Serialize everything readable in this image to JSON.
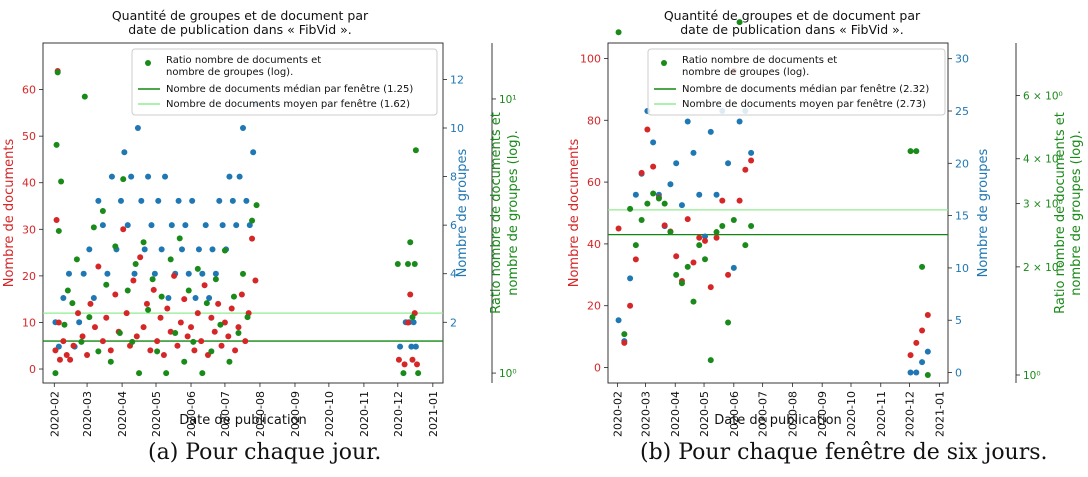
{
  "x_ticks": [
    "2020-02",
    "2020-03",
    "2020-04",
    "2020-05",
    "2020-06",
    "2020-07",
    "2020-08",
    "2020-09",
    "2020-10",
    "2020-11",
    "2020-12",
    "2021-01"
  ],
  "colors": {
    "documents": "#d62728",
    "groups": "#1f77b4",
    "ratio": "#1a8a1a",
    "median": "#118811",
    "mean": "#90ee90"
  },
  "chart_data": [
    {
      "type": "scatter",
      "title": "Quantité de groupes et de document par\ndate de publication dans « FibVid ».",
      "xlabel": "Date de publication",
      "ylabel_left": "Nombre de documents",
      "ylabel_right1": "Nombre de groupes",
      "ylabel_right2": "Ratio nombre de documents et\nnombre de groupes (log).",
      "y_left": {
        "lim": [
          -3,
          70
        ],
        "ticks": [
          0,
          10,
          20,
          30,
          40,
          50,
          60
        ]
      },
      "y_right1": {
        "lim": [
          -0.5,
          13.5
        ],
        "ticks": [
          2,
          4,
          6,
          8,
          10,
          12
        ]
      },
      "y_right2": {
        "lim": [
          0.92,
          16
        ],
        "ticks": [
          {
            "value": 1,
            "label": "10⁰"
          },
          {
            "value": 10,
            "label": "10¹"
          }
        ]
      },
      "legend": {
        "placement": "top-right",
        "entries": [
          "Ratio nombre de documents et\nnombre de groupes (log).",
          "Nombre de documents médian par fenêtre (1.25)",
          "Nombre de documents moyen par fenêtre (1.62)"
        ]
      },
      "hlines": [
        {
          "name": "Nombre de documents médian par fenêtre (1.25)",
          "y": 6
        },
        {
          "name": "Nombre de documents moyen par fenêtre (1.62)",
          "y": 12
        }
      ],
      "documents": [
        [
          "2020-02-02",
          4
        ],
        [
          "2020-02-03",
          32
        ],
        [
          "2020-02-04",
          64
        ],
        [
          "2020-02-05",
          10
        ],
        [
          "2020-02-06",
          2
        ],
        [
          "2020-02-09",
          6
        ],
        [
          "2020-02-12",
          3
        ],
        [
          "2020-02-15",
          2
        ],
        [
          "2020-02-18",
          5
        ],
        [
          "2020-02-22",
          12
        ],
        [
          "2020-02-26",
          7
        ],
        [
          "2020-03-01",
          3
        ],
        [
          "2020-03-04",
          14
        ],
        [
          "2020-03-08",
          9
        ],
        [
          "2020-03-11",
          22
        ],
        [
          "2020-03-15",
          6
        ],
        [
          "2020-03-18",
          11
        ],
        [
          "2020-03-22",
          4
        ],
        [
          "2020-03-26",
          16
        ],
        [
          "2020-03-29",
          8
        ],
        [
          "2020-04-02",
          30
        ],
        [
          "2020-04-05",
          12
        ],
        [
          "2020-04-08",
          5
        ],
        [
          "2020-04-11",
          19
        ],
        [
          "2020-04-14",
          7
        ],
        [
          "2020-04-17",
          24
        ],
        [
          "2020-04-20",
          9
        ],
        [
          "2020-04-23",
          14
        ],
        [
          "2020-04-26",
          4
        ],
        [
          "2020-04-29",
          17
        ],
        [
          "2020-05-02",
          6
        ],
        [
          "2020-05-05",
          11
        ],
        [
          "2020-05-08",
          3
        ],
        [
          "2020-05-11",
          13
        ],
        [
          "2020-05-14",
          8
        ],
        [
          "2020-05-17",
          20
        ],
        [
          "2020-05-20",
          5
        ],
        [
          "2020-05-23",
          10
        ],
        [
          "2020-05-26",
          15
        ],
        [
          "2020-05-29",
          7
        ],
        [
          "2020-06-01",
          9
        ],
        [
          "2020-06-04",
          4
        ],
        [
          "2020-06-07",
          12
        ],
        [
          "2020-06-10",
          6
        ],
        [
          "2020-06-13",
          18
        ],
        [
          "2020-06-16",
          3
        ],
        [
          "2020-06-19",
          11
        ],
        [
          "2020-06-22",
          8
        ],
        [
          "2020-06-25",
          14
        ],
        [
          "2020-06-28",
          5
        ],
        [
          "2020-07-01",
          10
        ],
        [
          "2020-07-04",
          7
        ],
        [
          "2020-07-07",
          13
        ],
        [
          "2020-07-10",
          4
        ],
        [
          "2020-07-13",
          9
        ],
        [
          "2020-07-16",
          16
        ],
        [
          "2020-07-19",
          6
        ],
        [
          "2020-07-22",
          12
        ],
        [
          "2020-07-25",
          28
        ],
        [
          "2020-07-28",
          19
        ],
        [
          "2020-12-02",
          2
        ],
        [
          "2020-12-07",
          1
        ],
        [
          "2020-12-10",
          10
        ],
        [
          "2020-12-12",
          16
        ],
        [
          "2020-12-14",
          2
        ],
        [
          "2020-12-16",
          12
        ],
        [
          "2020-12-18",
          1
        ]
      ],
      "groups": [
        [
          "2020-02-02",
          2
        ],
        [
          "2020-02-05",
          1
        ],
        [
          "2020-02-09",
          3
        ],
        [
          "2020-02-14",
          4
        ],
        [
          "2020-02-19",
          1
        ],
        [
          "2020-02-23",
          2
        ],
        [
          "2020-02-27",
          4
        ],
        [
          "2020-03-03",
          5
        ],
        [
          "2020-03-07",
          3
        ],
        [
          "2020-03-11",
          7
        ],
        [
          "2020-03-15",
          6
        ],
        [
          "2020-03-19",
          4
        ],
        [
          "2020-03-23",
          8
        ],
        [
          "2020-03-27",
          5
        ],
        [
          "2020-03-31",
          7
        ],
        [
          "2020-04-03",
          9
        ],
        [
          "2020-04-06",
          6
        ],
        [
          "2020-04-09",
          8
        ],
        [
          "2020-04-12",
          4
        ],
        [
          "2020-04-15",
          10
        ],
        [
          "2020-04-18",
          7
        ],
        [
          "2020-04-21",
          5
        ],
        [
          "2020-04-24",
          8
        ],
        [
          "2020-04-27",
          6
        ],
        [
          "2020-04-30",
          4
        ],
        [
          "2020-05-03",
          7
        ],
        [
          "2020-05-06",
          5
        ],
        [
          "2020-05-09",
          8
        ],
        [
          "2020-05-12",
          3
        ],
        [
          "2020-05-15",
          6
        ],
        [
          "2020-05-18",
          4
        ],
        [
          "2020-05-21",
          7
        ],
        [
          "2020-05-24",
          5
        ],
        [
          "2020-05-27",
          6
        ],
        [
          "2020-05-30",
          4
        ],
        [
          "2020-06-02",
          7
        ],
        [
          "2020-06-05",
          3
        ],
        [
          "2020-06-08",
          5
        ],
        [
          "2020-06-11",
          4
        ],
        [
          "2020-06-14",
          6
        ],
        [
          "2020-06-17",
          3
        ],
        [
          "2020-06-20",
          5
        ],
        [
          "2020-06-23",
          4
        ],
        [
          "2020-06-26",
          7
        ],
        [
          "2020-06-29",
          6
        ],
        [
          "2020-07-02",
          5
        ],
        [
          "2020-07-05",
          8
        ],
        [
          "2020-07-08",
          7
        ],
        [
          "2020-07-11",
          6
        ],
        [
          "2020-07-14",
          8
        ],
        [
          "2020-07-17",
          10
        ],
        [
          "2020-07-20",
          7
        ],
        [
          "2020-07-23",
          6
        ],
        [
          "2020-07-26",
          9
        ],
        [
          "2020-07-29",
          11
        ],
        [
          "2020-12-03",
          1
        ],
        [
          "2020-12-08",
          2
        ],
        [
          "2020-12-11",
          2
        ],
        [
          "2020-12-13",
          1
        ],
        [
          "2020-12-15",
          2
        ],
        [
          "2020-12-17",
          1
        ]
      ],
      "ratio": [
        [
          "2020-02-02",
          1
        ],
        [
          "2020-02-03",
          6.8
        ],
        [
          "2020-02-04",
          12.5
        ],
        [
          "2020-02-05",
          3.3
        ],
        [
          "2020-02-07",
          5
        ],
        [
          "2020-02-10",
          1.5
        ],
        [
          "2020-02-13",
          2
        ],
        [
          "2020-02-17",
          1.8
        ],
        [
          "2020-02-21",
          2.6
        ],
        [
          "2020-02-25",
          1.3
        ],
        [
          "2020-02-28",
          10.2
        ],
        [
          "2020-03-03",
          1.6
        ],
        [
          "2020-03-07",
          3.4
        ],
        [
          "2020-03-11",
          1.2
        ],
        [
          "2020-03-15",
          3.9
        ],
        [
          "2020-03-18",
          2.1
        ],
        [
          "2020-03-22",
          1.1
        ],
        [
          "2020-03-26",
          2.9
        ],
        [
          "2020-03-30",
          1.4
        ],
        [
          "2020-04-02",
          5.1
        ],
        [
          "2020-04-06",
          2
        ],
        [
          "2020-04-10",
          1.3
        ],
        [
          "2020-04-13",
          2.5
        ],
        [
          "2020-04-16",
          1
        ],
        [
          "2020-04-20",
          3
        ],
        [
          "2020-04-24",
          1.7
        ],
        [
          "2020-04-28",
          2.2
        ],
        [
          "2020-05-02",
          1.2
        ],
        [
          "2020-05-06",
          1.9
        ],
        [
          "2020-05-10",
          1
        ],
        [
          "2020-05-14",
          2.6
        ],
        [
          "2020-05-18",
          1.4
        ],
        [
          "2020-05-22",
          3.1
        ],
        [
          "2020-05-26",
          1.1
        ],
        [
          "2020-05-30",
          2
        ],
        [
          "2020-06-03",
          1.3
        ],
        [
          "2020-06-07",
          2.4
        ],
        [
          "2020-06-11",
          1
        ],
        [
          "2020-06-15",
          1.8
        ],
        [
          "2020-06-19",
          1.2
        ],
        [
          "2020-06-23",
          2.2
        ],
        [
          "2020-06-27",
          1.5
        ],
        [
          "2020-07-01",
          2.8
        ],
        [
          "2020-07-05",
          1.1
        ],
        [
          "2020-07-09",
          1.9
        ],
        [
          "2020-07-13",
          1.4
        ],
        [
          "2020-07-17",
          2.3
        ],
        [
          "2020-07-21",
          1.6
        ],
        [
          "2020-07-25",
          3.6
        ],
        [
          "2020-07-29",
          4.1
        ],
        [
          "2020-12-01",
          2.5
        ],
        [
          "2020-12-06",
          1
        ],
        [
          "2020-12-10",
          2.5
        ],
        [
          "2020-12-12",
          3
        ],
        [
          "2020-12-14",
          1.6
        ],
        [
          "2020-12-16",
          2.5
        ],
        [
          "2020-12-17",
          6.5
        ],
        [
          "2020-12-19",
          1
        ]
      ]
    },
    {
      "type": "scatter",
      "title": "Quantité de groupes et de document par\ndate de publication dans « FibVid ».",
      "xlabel": "Date de publication",
      "ylabel_left": "Nombre de documents",
      "ylabel_right1": "Nombre de groupes",
      "ylabel_right2": "Ratio nombre de documents et\nnombre de groupes (log).",
      "y_left": {
        "lim": [
          -5,
          105
        ],
        "ticks": [
          0,
          20,
          40,
          60,
          80,
          100
        ]
      },
      "y_right1": {
        "lim": [
          -1,
          31.5
        ],
        "ticks": [
          0,
          5,
          10,
          15,
          20,
          25,
          30
        ]
      },
      "y_right2": {
        "lim": [
          0.95,
          8.4
        ],
        "ticks": [
          {
            "value": 1,
            "label": "10⁰"
          },
          {
            "value": 2,
            "label": "2 × 10⁰"
          },
          {
            "value": 3,
            "label": "3 × 10⁰"
          },
          {
            "value": 4,
            "label": "4 × 10⁰"
          },
          {
            "value": 6,
            "label": "6 × 10⁰"
          }
        ]
      },
      "legend": {
        "placement": "top-right",
        "entries": [
          "Ratio nombre de documents et\nnombre de groupes (log).",
          "Nombre de documents médian par fenêtre (2.32)",
          "Nombre de documents moyen par fenêtre (2.73)"
        ]
      },
      "hlines": [
        {
          "name": "Nombre de documents médian par fenêtre (2.32)",
          "y": 43
        },
        {
          "name": "Nombre de documents moyen par fenêtre (2.73)",
          "y": 51
        }
      ],
      "documents": [
        [
          "2020-02-02",
          45
        ],
        [
          "2020-02-08",
          8
        ],
        [
          "2020-02-14",
          20
        ],
        [
          "2020-02-20",
          35
        ],
        [
          "2020-02-26",
          63
        ],
        [
          "2020-03-03",
          77
        ],
        [
          "2020-03-09",
          65
        ],
        [
          "2020-03-15",
          55
        ],
        [
          "2020-03-21",
          46
        ],
        [
          "2020-03-27",
          44
        ],
        [
          "2020-04-02",
          36
        ],
        [
          "2020-04-08",
          28
        ],
        [
          "2020-04-14",
          48
        ],
        [
          "2020-04-20",
          34
        ],
        [
          "2020-04-26",
          42
        ],
        [
          "2020-05-02",
          41
        ],
        [
          "2020-05-08",
          26
        ],
        [
          "2020-05-14",
          42
        ],
        [
          "2020-05-20",
          54
        ],
        [
          "2020-05-26",
          30
        ],
        [
          "2020-06-01",
          96
        ],
        [
          "2020-06-07",
          54
        ],
        [
          "2020-06-13",
          64
        ],
        [
          "2020-06-19",
          67
        ],
        [
          "2020-12-02",
          4
        ],
        [
          "2020-12-08",
          8
        ],
        [
          "2020-12-14",
          12
        ],
        [
          "2020-12-20",
          17
        ]
      ],
      "groups": [
        [
          "2020-02-02",
          5
        ],
        [
          "2020-02-08",
          3
        ],
        [
          "2020-02-14",
          9
        ],
        [
          "2020-02-20",
          17
        ],
        [
          "2020-02-26",
          19
        ],
        [
          "2020-03-03",
          25
        ],
        [
          "2020-03-09",
          22
        ],
        [
          "2020-03-15",
          17
        ],
        [
          "2020-03-21",
          14
        ],
        [
          "2020-03-27",
          18
        ],
        [
          "2020-04-02",
          20
        ],
        [
          "2020-04-08",
          16
        ],
        [
          "2020-04-14",
          24
        ],
        [
          "2020-04-20",
          21
        ],
        [
          "2020-04-26",
          17
        ],
        [
          "2020-05-02",
          13
        ],
        [
          "2020-05-08",
          23
        ],
        [
          "2020-05-14",
          17
        ],
        [
          "2020-05-20",
          25
        ],
        [
          "2020-05-26",
          20
        ],
        [
          "2020-06-01",
          10
        ],
        [
          "2020-06-07",
          24
        ],
        [
          "2020-06-13",
          25
        ],
        [
          "2020-06-19",
          21
        ],
        [
          "2020-12-02",
          0
        ],
        [
          "2020-12-08",
          0
        ],
        [
          "2020-12-14",
          1
        ],
        [
          "2020-12-20",
          2
        ]
      ],
      "ratio": [
        [
          "2020-02-02",
          9.0
        ],
        [
          "2020-02-08",
          1.3
        ],
        [
          "2020-02-14",
          2.9
        ],
        [
          "2020-02-20",
          2.3
        ],
        [
          "2020-02-26",
          2.7
        ],
        [
          "2020-03-03",
          3.0
        ],
        [
          "2020-03-09",
          3.2
        ],
        [
          "2020-03-15",
          3.1
        ],
        [
          "2020-03-21",
          3.0
        ],
        [
          "2020-03-27",
          2.5
        ],
        [
          "2020-04-02",
          1.9
        ],
        [
          "2020-04-08",
          1.8
        ],
        [
          "2020-04-14",
          2.0
        ],
        [
          "2020-04-20",
          1.6
        ],
        [
          "2020-04-26",
          2.3
        ],
        [
          "2020-05-02",
          2.1
        ],
        [
          "2020-05-08",
          1.1
        ],
        [
          "2020-05-14",
          2.5
        ],
        [
          "2020-05-20",
          2.6
        ],
        [
          "2020-05-26",
          1.4
        ],
        [
          "2020-06-01",
          2.7
        ],
        [
          "2020-06-07",
          9.6
        ],
        [
          "2020-06-13",
          2.3
        ],
        [
          "2020-06-19",
          2.6
        ],
        [
          "2020-12-02",
          4.2
        ],
        [
          "2020-12-08",
          4.2
        ],
        [
          "2020-12-14",
          2.0
        ],
        [
          "2020-12-20",
          1.0
        ]
      ]
    }
  ],
  "captions": [
    "(a) Pour chaque jour.",
    "(b) Pour chaque fenêtre de six jours."
  ]
}
